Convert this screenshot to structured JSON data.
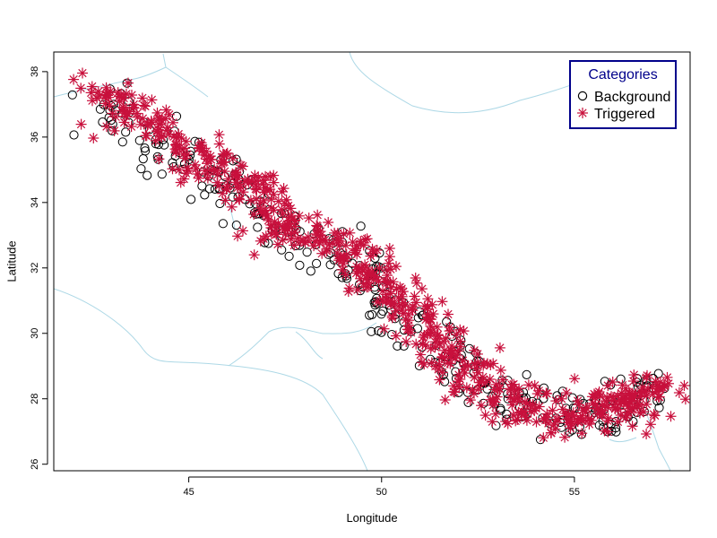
{
  "chart_data": {
    "type": "scatter",
    "xlabel": "Longitude",
    "ylabel": "Latitude",
    "xlim": [
      41.5,
      58.0
    ],
    "ylim": [
      25.8,
      38.6
    ],
    "x_ticks": [
      45,
      50,
      55
    ],
    "y_ticks": [
      26,
      28,
      30,
      32,
      34,
      36,
      38
    ],
    "grid": false,
    "legend": {
      "title": "Categories",
      "position": "top-right",
      "entries": [
        "Background",
        "Triggered"
      ]
    },
    "colors": {
      "background": "#000000",
      "triggered": "#c8103c",
      "coastline": "#add8e6",
      "legend_border": "#00008b"
    },
    "background_control_points": [
      [
        42.5,
        37.0
      ],
      [
        43.5,
        36.6
      ],
      [
        44.5,
        35.6
      ],
      [
        45.5,
        34.9
      ],
      [
        46.5,
        34.0
      ],
      [
        47.5,
        33.2
      ],
      [
        48.5,
        32.6
      ],
      [
        49.5,
        31.9
      ],
      [
        50.2,
        31.0
      ],
      [
        51.0,
        30.2
      ],
      [
        51.5,
        29.4
      ],
      [
        52.5,
        28.5
      ],
      [
        53.5,
        27.9
      ],
      [
        54.5,
        27.4
      ],
      [
        55.5,
        27.4
      ],
      [
        56.5,
        27.9
      ],
      [
        57.3,
        28.4
      ]
    ],
    "triggered_control_points": [
      [
        42.6,
        37.4
      ],
      [
        43.6,
        36.8
      ],
      [
        44.6,
        35.9
      ],
      [
        45.5,
        35.2
      ],
      [
        46.5,
        34.3
      ],
      [
        47.5,
        33.3
      ],
      [
        48.5,
        32.8
      ],
      [
        49.5,
        32.2
      ],
      [
        50.3,
        31.2
      ],
      [
        51.0,
        30.4
      ],
      [
        51.5,
        29.6
      ],
      [
        52.5,
        28.6
      ],
      [
        53.5,
        27.9
      ],
      [
        54.5,
        27.5
      ],
      [
        55.5,
        27.6
      ],
      [
        56.5,
        28.0
      ],
      [
        57.3,
        28.4
      ]
    ],
    "background_count": 320,
    "triggered_count": 700
  }
}
